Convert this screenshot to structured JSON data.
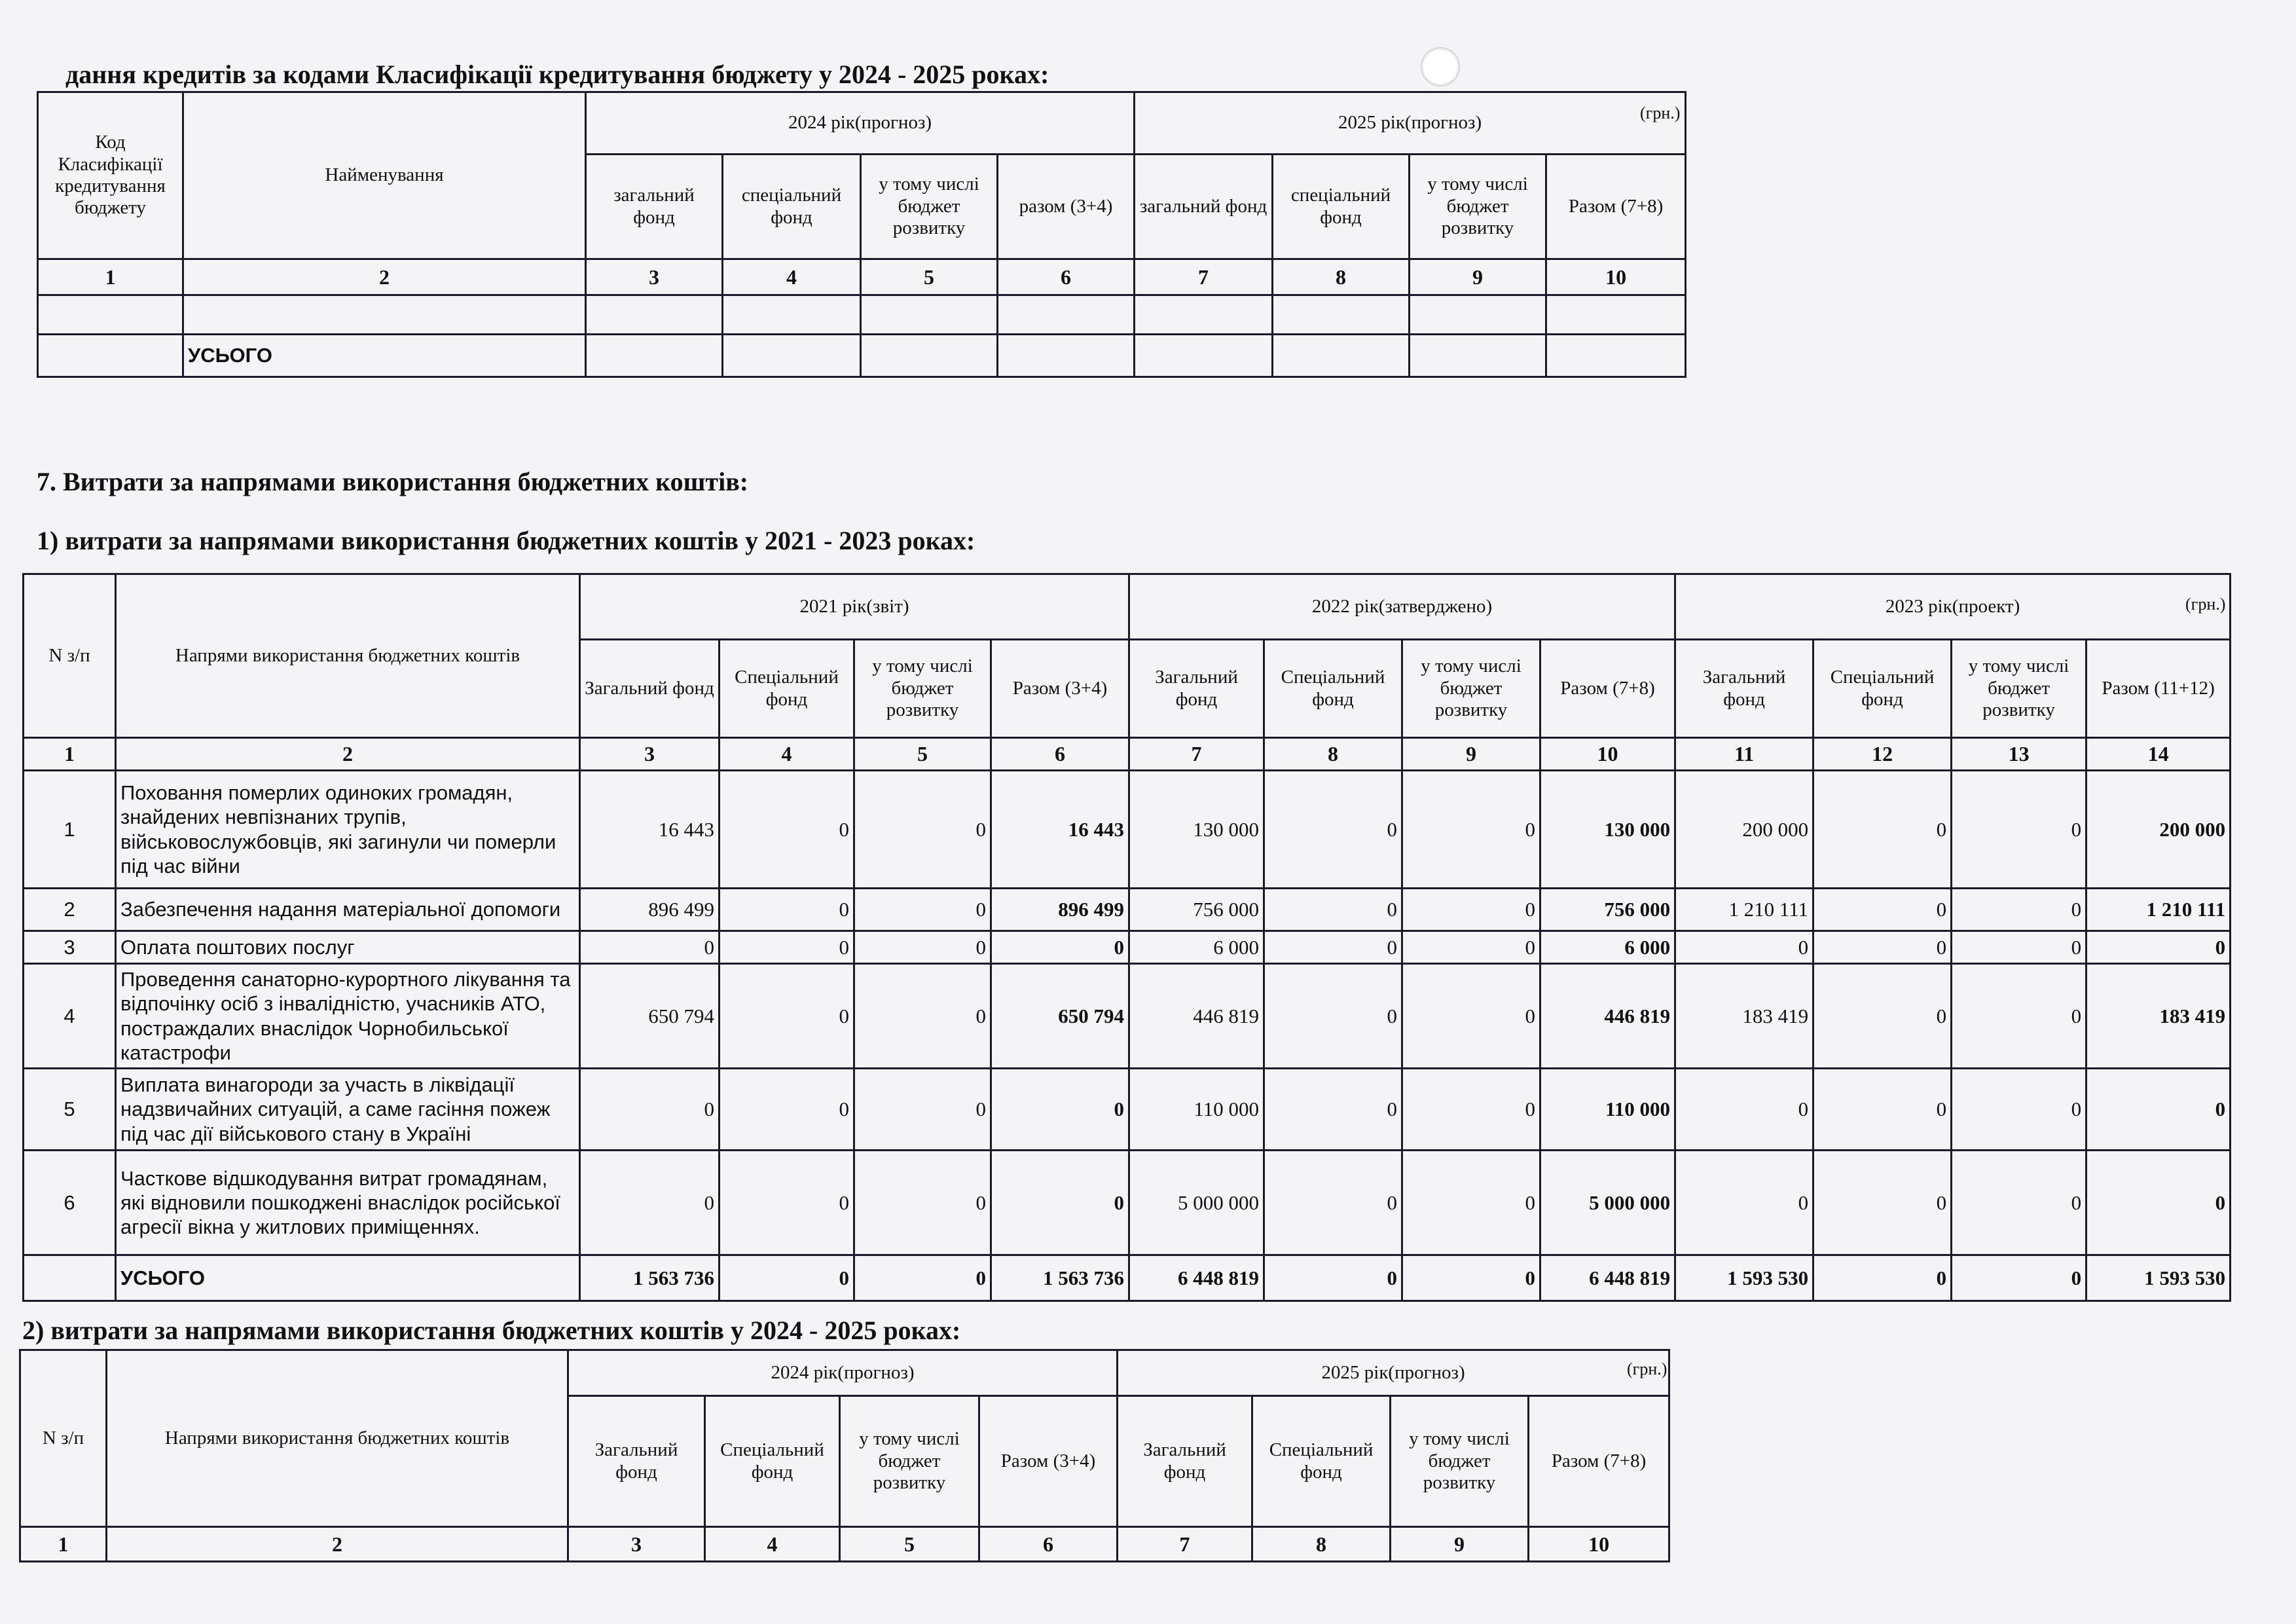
{
  "credits_section": {
    "heading": "дання кредитів за кодами Класифікації кредитування бюджету у  2024 - 2025 роках:",
    "unit": "(грн.)",
    "headers": {
      "code": "Код Класифікації кредитування бюджету",
      "name": "Найменування",
      "year1": "2024 рік(прогноз)",
      "year2": "2025 рік(прогноз)",
      "sub1": [
        "загальний фонд",
        "спеціальний фонд",
        "у тому числі бюджет розвитку",
        "разом (3+4)"
      ],
      "sub2": [
        "загальний фонд",
        "спеціальний фонд",
        "у тому числі бюджет розвитку",
        "Разом (7+8)"
      ]
    },
    "col_numbers": [
      "1",
      "2",
      "3",
      "4",
      "5",
      "6",
      "7",
      "8",
      "9",
      "10"
    ],
    "total_label": "УСЬОГО"
  },
  "section7": {
    "heading": "7. Витрати за напрямами використання бюджетних коштів:"
  },
  "expenses_2021_2023": {
    "heading": "1) витрати за напрямами використання бюджетних коштів у 2021 - 2023 роках:",
    "unit": "(грн.)",
    "headers": {
      "num": "N з/п",
      "name": "Напрями використання бюджетних коштів",
      "years": [
        "2021 рік(звіт)",
        "2022 рік(затверджено)",
        "2023 рік(проект)"
      ],
      "sub": [
        [
          "Загальний фонд",
          "Спеціальний фонд",
          "у тому числі бюджет розвитку",
          "Разом (3+4)"
        ],
        [
          "Загальний фонд",
          "Спеціальний фонд",
          "у тому числі бюджет розвитку",
          "Разом (7+8)"
        ],
        [
          "Загальний фонд",
          "Спеціальний фонд",
          "у тому числі бюджет розвитку",
          "Разом (11+12)"
        ]
      ]
    },
    "col_numbers": [
      "1",
      "2",
      "3",
      "4",
      "5",
      "6",
      "7",
      "8",
      "9",
      "10",
      "11",
      "12",
      "13",
      "14"
    ],
    "rows": [
      {
        "n": "1",
        "name": "Поховання померлих одиноких громадян, знайдених невпізнаних трупів, військовослужбовців, які загинули чи померли під час війни",
        "values": [
          "16 443",
          "0",
          "0",
          "16 443",
          "130 000",
          "0",
          "0",
          "130 000",
          "200 000",
          "0",
          "0",
          "200 000"
        ]
      },
      {
        "n": "2",
        "name": "Забезпечення надання матеріальної допомоги",
        "values": [
          "896 499",
          "0",
          "0",
          "896 499",
          "756 000",
          "0",
          "0",
          "756 000",
          "1 210 111",
          "0",
          "0",
          "1 210 111"
        ]
      },
      {
        "n": "3",
        "name": "Оплата поштових послуг",
        "values": [
          "0",
          "0",
          "0",
          "0",
          "6 000",
          "0",
          "0",
          "6 000",
          "0",
          "0",
          "0",
          "0"
        ]
      },
      {
        "n": "4",
        "name": "Проведення санаторно-курортного лікування та відпочінку осіб з інвалідністю, учасників АТО, постраждалих внаслідок Чорнобильської катастрофи",
        "values": [
          "650 794",
          "0",
          "0",
          "650 794",
          "446 819",
          "0",
          "0",
          "446 819",
          "183 419",
          "0",
          "0",
          "183 419"
        ]
      },
      {
        "n": "5",
        "name": "Виплата винагороди за участь в ліквідації надзвичайних ситуацій, а саме гасіння пожеж під час дії військового стану в Україні",
        "values": [
          "0",
          "0",
          "0",
          "0",
          "110 000",
          "0",
          "0",
          "110 000",
          "0",
          "0",
          "0",
          "0"
        ]
      },
      {
        "n": "6",
        "name": "Часткове відшкодування витрат громадянам, які відновили пошкоджені внаслідок російської агресії вікна у житлових приміщеннях.",
        "values": [
          "0",
          "0",
          "0",
          "0",
          "5 000 000",
          "0",
          "0",
          "5 000 000",
          "0",
          "0",
          "0",
          "0"
        ]
      }
    ],
    "total": {
      "label": "УСЬОГО",
      "values": [
        "1 563 736",
        "0",
        "0",
        "1 563 736",
        "6 448 819",
        "0",
        "0",
        "6 448 819",
        "1 593 530",
        "0",
        "0",
        "1 593 530"
      ]
    }
  },
  "expenses_2024_2025": {
    "heading": "2) витрати за напрямами використання бюджетних коштів у  2024 - 2025 роках:",
    "unit": "(грн.)",
    "headers": {
      "num": "N з/п",
      "name": "Напрями використання бюджетних коштів",
      "years": [
        "2024 рік(прогноз)",
        "2025 рік(прогноз)"
      ],
      "sub": [
        [
          "Загальний фонд",
          "Спеціальний фонд",
          "у тому числі бюджет розвитку",
          "Разом (3+4)"
        ],
        [
          "Загальний фонд",
          "Спеціальний фонд",
          "у тому числі бюджет розвитку",
          "Разом (7+8)"
        ]
      ]
    },
    "col_numbers": [
      "1",
      "2",
      "3",
      "4",
      "5",
      "6",
      "7",
      "8",
      "9",
      "10"
    ]
  }
}
